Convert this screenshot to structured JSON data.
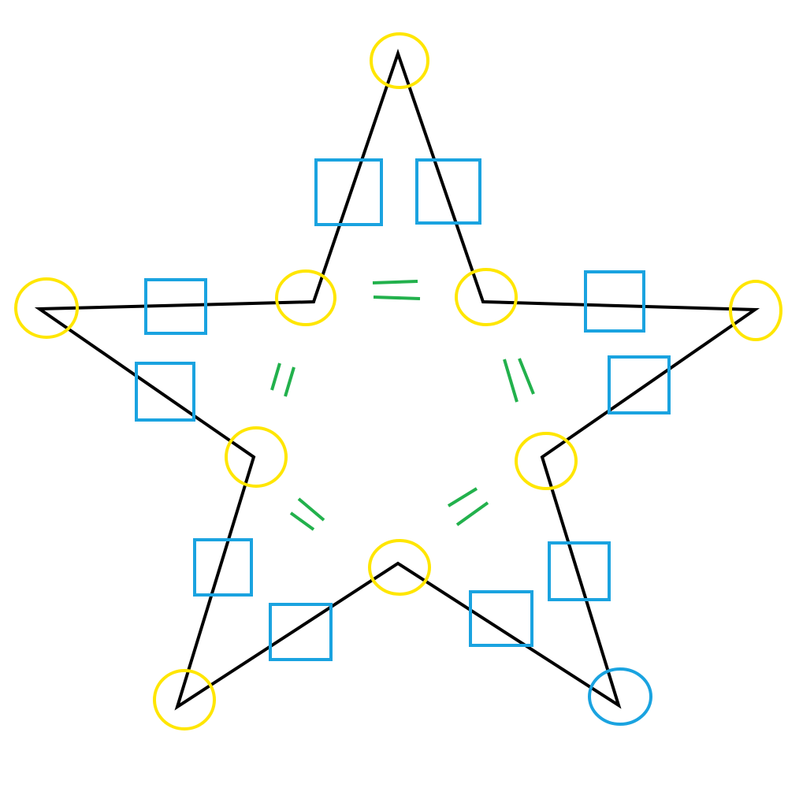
{
  "diagram": {
    "colors": {
      "background": "#ffffff",
      "outline": "#000000",
      "vertex_marker": "#ffe600",
      "highlight_marker": "#1aa3e0",
      "side_marker": "#1aa3e0",
      "equal_marks": "#22b14c"
    },
    "shape": "five-pointed star outline with 10 vertices",
    "vertices": [
      {
        "name": "top-tip",
        "marker": "circle",
        "highlight": false
      },
      {
        "name": "upper-right-inner",
        "marker": "circle",
        "highlight": false
      },
      {
        "name": "right-tip",
        "marker": "circle",
        "highlight": false
      },
      {
        "name": "lower-right-inner",
        "marker": "circle",
        "highlight": false
      },
      {
        "name": "bottom-right-tip",
        "marker": "circle",
        "highlight": true
      },
      {
        "name": "bottom-inner",
        "marker": "circle",
        "highlight": false
      },
      {
        "name": "bottom-left-tip",
        "marker": "circle",
        "highlight": false
      },
      {
        "name": "lower-left-inner",
        "marker": "circle",
        "highlight": false
      },
      {
        "name": "left-tip",
        "marker": "circle",
        "highlight": false
      },
      {
        "name": "upper-left-inner",
        "marker": "circle",
        "highlight": false
      }
    ],
    "side_markers": 10,
    "equal_mark_pairs": 5
  }
}
